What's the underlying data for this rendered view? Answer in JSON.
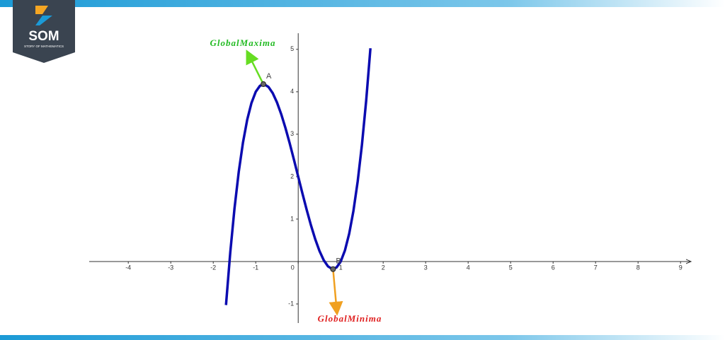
{
  "logo": {
    "name": "SOM",
    "subtitle": "STORY OF MATHEMATICS"
  },
  "chart_data": {
    "type": "line",
    "x": [
      -1.7,
      -1.6,
      -1.5,
      -1.4,
      -1.3,
      -1.2,
      -1.1,
      -1.0,
      -0.9,
      -0.8,
      -0.7,
      -0.6,
      -0.5,
      -0.4,
      -0.3,
      -0.2,
      -0.1,
      0,
      0.1,
      0.2,
      0.3,
      0.4,
      0.5,
      0.6,
      0.7,
      0.8,
      0.9,
      1.0,
      1.1,
      1.2,
      1.3,
      1.4,
      1.5,
      1.6,
      1.7
    ],
    "series": [
      {
        "color": "#0b0bb0",
        "values": [
          -1.026,
          0.208,
          1.25,
          2.112,
          2.806,
          3.344,
          3.738,
          4,
          4.142,
          4.176,
          4.114,
          3.968,
          3.75,
          3.472,
          3.146,
          2.784,
          2.398,
          2,
          1.602,
          1.216,
          0.854,
          0.528,
          0.25,
          0.032,
          -0.114,
          -0.176,
          -0.142,
          0,
          0.262,
          0.656,
          1.194,
          1.888,
          2.75,
          3.792,
          5.026
        ]
      }
    ],
    "points": [
      {
        "label": "A",
        "x": -0.82,
        "y": 4.18
      },
      {
        "label": "B",
        "x": 0.82,
        "y": -0.18
      }
    ],
    "annotations": [
      {
        "text": "GlobalMaxima",
        "color": "#22bb22"
      },
      {
        "text": "GlobalMinima",
        "color": "#e02020"
      }
    ],
    "xlim": [
      -4.92,
      9.23
    ],
    "ylim": [
      -1.45,
      5.38
    ],
    "xticks": [
      -4,
      -3,
      -2,
      -1,
      0,
      1,
      2,
      3,
      4,
      5,
      6,
      7,
      8,
      9
    ],
    "yticks": [
      -1,
      1,
      2,
      3,
      4,
      5
    ]
  }
}
